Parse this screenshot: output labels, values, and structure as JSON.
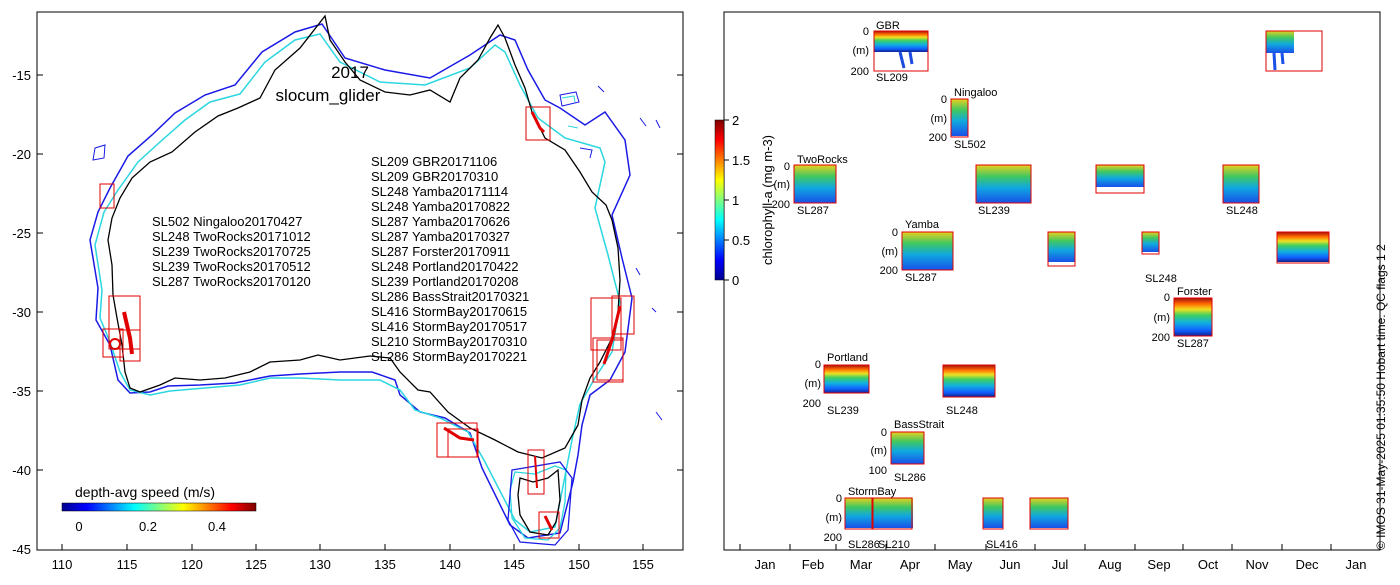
{
  "map": {
    "year": "2017",
    "platform": "slocum_glider",
    "y_ticks": [
      "-15",
      "-20",
      "-25",
      "-30",
      "-35",
      "-40",
      "-45"
    ],
    "x_ticks": [
      "110",
      "115",
      "120",
      "125",
      "130",
      "135",
      "140",
      "145",
      "150",
      "155"
    ],
    "west_deployments": [
      "SL502 Ningaloo20170427",
      "SL248 TwoRocks20171012",
      "SL239 TwoRocks20170725",
      "SL239 TwoRocks20170512",
      "SL287 TwoRocks20170120"
    ],
    "east_deployments": [
      "SL209 GBR20171106",
      "SL209 GBR20170310",
      "SL248 Yamba20171114",
      "SL248 Yamba20170822",
      "SL287 Yamba20170626",
      "SL287 Yamba20170327",
      "SL287 Forster20170911",
      "SL248 Portland20170422",
      "SL239 Portland20170208",
      "SL286 BassStrait20170321",
      "SL416 StormBay20170615",
      "SL416 StormBay20170517",
      "SL210 StormBay20170310",
      "SL286 StormBay20170221"
    ],
    "speed_colorbar": {
      "label": "depth-avg speed (m/s)",
      "ticks": [
        "0",
        "0.2",
        "0.4"
      ]
    }
  },
  "timeline": {
    "months": [
      "Jan",
      "Feb",
      "Mar",
      "Apr",
      "May",
      "Jun",
      "Jul",
      "Aug",
      "Sep",
      "Oct",
      "Nov",
      "Dec",
      "Jan"
    ],
    "colorbar": {
      "label": "chlorophyll-a (mg m-3)",
      "ticks": [
        "2",
        "1.5",
        "1",
        "0.5",
        "0"
      ]
    },
    "depth_label": "(m)",
    "sites": {
      "gbr": {
        "name": "GBR",
        "top": "0",
        "bottom": "200",
        "glider": "SL209"
      },
      "ningaloo": {
        "name": "Ningaloo",
        "top": "0",
        "bottom": "200",
        "glider": "SL502"
      },
      "tworocks": {
        "name": "TwoRocks",
        "top": "0",
        "bottom": "200",
        "gliders": [
          "SL287",
          "SL239",
          "SL248"
        ]
      },
      "yamba": {
        "name": "Yamba",
        "top": "0",
        "bottom": "200",
        "gliders": [
          "SL287",
          "SL248"
        ]
      },
      "forster": {
        "name": "Forster",
        "top": "0",
        "bottom": "200",
        "glider": "SL287"
      },
      "portland": {
        "name": "Portland",
        "top": "0",
        "bottom": "200",
        "gliders": [
          "SL239",
          "SL248"
        ]
      },
      "bassstrait": {
        "name": "BassStrait",
        "top": "0",
        "bottom": "100",
        "glider": "SL286"
      },
      "stormbay": {
        "name": "StormBay",
        "top": "0",
        "bottom": "200",
        "gliders": [
          "SL286",
          "SL210",
          "SL416"
        ]
      }
    },
    "credit": "© IMOS 31-May-2025 01:35:50 Hobart time. QC flags 1  2"
  }
}
